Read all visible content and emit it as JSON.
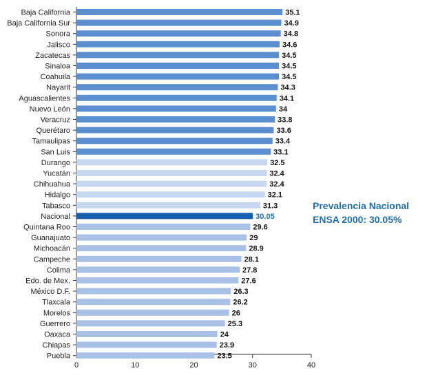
{
  "annotation": {
    "line1": "Prevalencia Nacional",
    "line2": "ENSA 2000: 30.05%"
  },
  "colors": {
    "high": "#5b8fd0",
    "medium": "#c7d7ef",
    "national": "#1560b0",
    "national_label": "#1f6db3",
    "low": "#a9c1e6"
  },
  "chart_data": {
    "type": "bar",
    "orientation": "horizontal",
    "categories": [
      "Baja California",
      "Baja California Sur",
      "Sonora",
      "Jalisco",
      "Zacatecas",
      "Sinaloa",
      "Coahuila",
      "Nayarit",
      "Aguascalientes",
      "Nuevo León",
      "Veracruz",
      "Querétaro",
      "Tamaulipas",
      "San Luis",
      "Durango",
      "Yucatán",
      "Chihuahua",
      "Hidalgo",
      "Tabasco",
      "Nacional",
      "Quintana Roo",
      "Guanajuato",
      "Michoacán",
      "Campeche",
      "Colima",
      "Edo. de Mex.",
      "México D.F.",
      "Tlaxcala",
      "Morelos",
      "Guerrero",
      "Oaxaca",
      "Chiapas",
      "Puebla"
    ],
    "values": [
      35.1,
      34.9,
      34.8,
      34.6,
      34.5,
      34.5,
      34.5,
      34.3,
      34.1,
      34,
      33.8,
      33.6,
      33.4,
      33.1,
      32.5,
      32.4,
      32.4,
      32.1,
      31.3,
      30.05,
      29.6,
      29,
      28.9,
      28.1,
      27.8,
      27.6,
      26.3,
      26.2,
      26,
      25.3,
      24,
      23.9,
      23.5
    ],
    "value_labels": [
      "35.1",
      "34.9",
      "34.8",
      "34.6",
      "34.5",
      "34.5",
      "34.5",
      "34.3",
      "34.1",
      "34",
      "33.8",
      "33.6",
      "33.4",
      "33.1",
      "32.5",
      "32.4",
      "32.4",
      "32.1",
      "31.3",
      "30.05",
      "29.6",
      "29",
      "28.9",
      "28.1",
      "27.8",
      "27.6",
      "26.3",
      "26.2",
      "26",
      "25.3",
      "24",
      "23.9",
      "23.5"
    ],
    "groups": [
      "high",
      "high",
      "high",
      "high",
      "high",
      "high",
      "high",
      "high",
      "high",
      "high",
      "high",
      "high",
      "high",
      "high",
      "medium",
      "medium",
      "medium",
      "medium",
      "medium",
      "national",
      "low",
      "low",
      "low",
      "low",
      "low",
      "low",
      "low",
      "low",
      "low",
      "low",
      "low",
      "low",
      "low"
    ],
    "xlim": [
      0,
      40
    ],
    "x_ticks": [
      0,
      10,
      20,
      30,
      40
    ],
    "title": "",
    "xlabel": "",
    "ylabel": "",
    "grid": false,
    "legend": "none"
  }
}
